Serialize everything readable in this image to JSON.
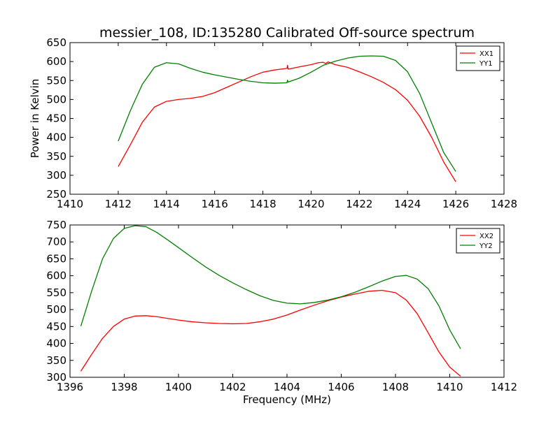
{
  "figure": {
    "title": "messier_108, ID:135280 Calibrated Off-source spectrum"
  },
  "chart_data": [
    {
      "type": "line",
      "title": "messier_108, ID:135280 Calibrated Off-source spectrum",
      "xlabel": "",
      "ylabel": "Power in Kelvin",
      "xlim": [
        1410,
        1428
      ],
      "ylim": [
        250,
        650
      ],
      "xticks": [
        1410,
        1412,
        1414,
        1416,
        1418,
        1420,
        1422,
        1424,
        1426,
        1428
      ],
      "yticks": [
        250,
        300,
        350,
        400,
        450,
        500,
        550,
        600,
        650
      ],
      "grid": false,
      "legend": "top-right",
      "series": [
        {
          "name": "XX1",
          "color": "#ff0000",
          "x": [
            1412,
            1412.5,
            1413,
            1413.5,
            1414,
            1414.5,
            1415,
            1415.5,
            1416,
            1416.5,
            1417,
            1417.5,
            1418,
            1418.5,
            1419,
            1419.02,
            1419.05,
            1419.5,
            1420,
            1420.3,
            1420.5,
            1420.6,
            1420.7,
            1421,
            1421.5,
            1422,
            1422.5,
            1423,
            1423.5,
            1424,
            1424.5,
            1425,
            1425.5,
            1426
          ],
          "y": [
            323,
            380,
            440,
            480,
            495,
            500,
            503,
            508,
            518,
            532,
            546,
            560,
            572,
            578,
            582,
            590,
            580,
            586,
            592,
            597,
            598,
            595,
            599,
            592,
            585,
            573,
            560,
            545,
            526,
            498,
            456,
            400,
            335,
            283
          ]
        },
        {
          "name": "YY1",
          "color": "#008000",
          "x": [
            1412,
            1412.5,
            1413,
            1413.5,
            1414,
            1414.5,
            1415,
            1415.5,
            1416,
            1416.5,
            1417,
            1417.5,
            1418,
            1418.5,
            1419,
            1419.02,
            1419.05,
            1419.5,
            1420,
            1420.5,
            1421,
            1421.5,
            1422,
            1422.5,
            1423,
            1423.5,
            1424,
            1424.5,
            1425,
            1425.5,
            1426
          ],
          "y": [
            390,
            470,
            540,
            585,
            597,
            594,
            582,
            572,
            565,
            559,
            553,
            548,
            544,
            543,
            544,
            551,
            546,
            556,
            572,
            590,
            601,
            609,
            614,
            615,
            614,
            603,
            573,
            516,
            438,
            360,
            310
          ]
        }
      ]
    },
    {
      "type": "line",
      "title": "",
      "xlabel": "Frequency (MHz)",
      "ylabel": "",
      "xlim": [
        1396,
        1412
      ],
      "ylim": [
        300,
        750
      ],
      "xticks": [
        1396,
        1398,
        1400,
        1402,
        1404,
        1406,
        1408,
        1410,
        1412
      ],
      "yticks": [
        300,
        350,
        400,
        450,
        500,
        550,
        600,
        650,
        700,
        750
      ],
      "grid": false,
      "legend": "top-right",
      "series": [
        {
          "name": "XX2",
          "color": "#ff0000",
          "x": [
            1396.4,
            1396.8,
            1397.2,
            1397.6,
            1398,
            1398.4,
            1398.8,
            1399.2,
            1399.6,
            1400,
            1400.5,
            1401,
            1401.5,
            1402,
            1402.5,
            1403,
            1403.5,
            1404,
            1404.5,
            1405,
            1405.5,
            1406,
            1406.5,
            1407,
            1407.5,
            1408,
            1408.4,
            1408.8,
            1409.2,
            1409.6,
            1410,
            1410.4
          ],
          "y": [
            318,
            368,
            415,
            450,
            472,
            481,
            482,
            479,
            474,
            469,
            464,
            461,
            459,
            458,
            459,
            464,
            472,
            484,
            499,
            513,
            526,
            537,
            546,
            554,
            557,
            550,
            528,
            488,
            432,
            375,
            330,
            303
          ]
        },
        {
          "name": "YY2",
          "color": "#008000",
          "x": [
            1396.4,
            1396.8,
            1397.2,
            1397.6,
            1398,
            1398.4,
            1398.8,
            1399.2,
            1399.6,
            1400,
            1400.5,
            1401,
            1401.5,
            1402,
            1402.5,
            1403,
            1403.5,
            1404,
            1404.5,
            1405,
            1405.5,
            1406,
            1406.5,
            1407,
            1407.5,
            1408,
            1408.4,
            1408.8,
            1409.2,
            1409.6,
            1410,
            1410.4
          ],
          "y": [
            451,
            555,
            650,
            710,
            740,
            748,
            745,
            728,
            706,
            683,
            654,
            626,
            601,
            579,
            559,
            541,
            527,
            519,
            517,
            521,
            528,
            538,
            551,
            567,
            584,
            598,
            601,
            590,
            562,
            511,
            440,
            384
          ]
        }
      ]
    }
  ]
}
